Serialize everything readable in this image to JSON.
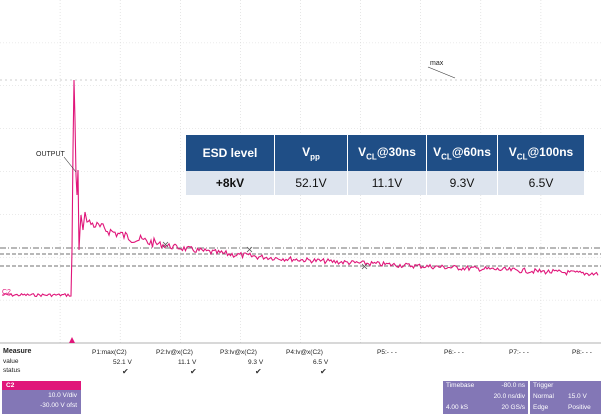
{
  "scope": {
    "labels": {
      "max": "max",
      "output": "OUTPUT",
      "channel": "C2"
    }
  },
  "table": {
    "headers": [
      {
        "main": "ESD level",
        "sub": "",
        "tail": ""
      },
      {
        "main": "V",
        "sub": "pp",
        "tail": ""
      },
      {
        "main": "V",
        "sub": "CL",
        "tail": "@30ns"
      },
      {
        "main": "V",
        "sub": "CL",
        "tail": "@60ns"
      },
      {
        "main": "V",
        "sub": "CL",
        "tail": "@100ns"
      }
    ],
    "row": [
      "+8kV",
      "52.1V",
      "11.1V",
      "9.3V",
      "6.5V"
    ]
  },
  "measure": {
    "title": "Measure",
    "row_labels": {
      "value": "value",
      "status": "status"
    },
    "params": [
      "P1:max(C2)",
      "P2:lv@x(C2)",
      "P3:lv@x(C2)",
      "P4:lv@x(C2)",
      "P5:- - -",
      "P6:- - -",
      "P7:- - -",
      "P8:- - -"
    ],
    "values": [
      "52.1 V",
      "11.1 V",
      "9.3 V",
      "6.5 V"
    ]
  },
  "channel_box": {
    "name": "C2",
    "scale": "10.0 V/div",
    "offset": "-30.00 V ofst"
  },
  "timebase_box": {
    "label": "Timebase",
    "offset": "-80.0 ns",
    "div": "20.0 ns/div",
    "samples": "4.00 kS",
    "rate": "20 GS/s"
  },
  "trigger_box": {
    "label": "Trigger",
    "mode": "Normal",
    "level": "15.0 V",
    "type": "Edge",
    "slope": "Positive"
  },
  "colors": {
    "trace": "#e0167a",
    "header_bg": "#1f4e86",
    "cell_bg": "#dde4ee",
    "box_bg": "#8377b6"
  }
}
